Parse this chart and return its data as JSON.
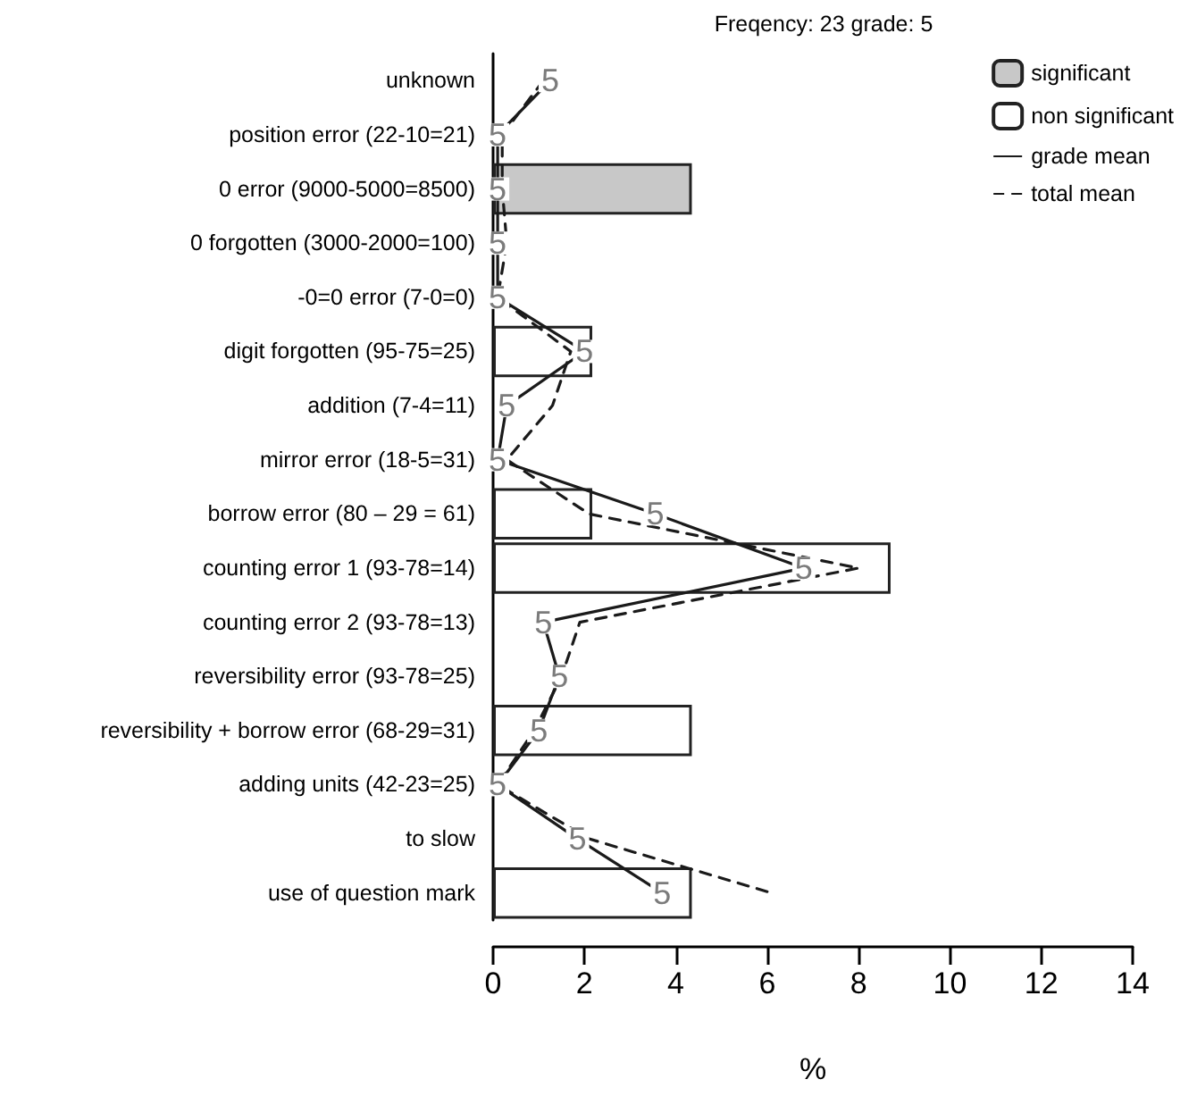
{
  "chart_data": {
    "type": "bar",
    "orientation": "horizontal",
    "title": "Freqency: 23 grade: 5",
    "xlabel": "%",
    "categories": [
      "unknown",
      "position error (22-10=21)",
      "0 error (9000-5000=8500)",
      "0 forgotten (3000-2000=100)",
      "-0=0 error (7-0=0)",
      "digit forgotten (95-75=25)",
      "addition (7-4=11)",
      "mirror error (18-5=31)",
      "borrow error (80 – 29 = 61)",
      "counting error 1 (93-78=14)",
      "counting error 2 (93-78=13)",
      "reversibility error (93-78=25)",
      "reversibility + borrow error (68-29=31)",
      "adding units (42-23=25)",
      "to slow",
      "use of question mark"
    ],
    "series": [
      {
        "name": "significant",
        "color": "#c8c8c8",
        "values": [
          null,
          null,
          4.35,
          null,
          null,
          null,
          null,
          null,
          null,
          null,
          null,
          null,
          null,
          null,
          null,
          null
        ]
      },
      {
        "name": "non significant",
        "color": "#ffffff",
        "values": [
          null,
          null,
          null,
          null,
          null,
          2.17,
          null,
          null,
          2.17,
          8.7,
          null,
          null,
          4.35,
          null,
          null,
          4.35
        ]
      },
      {
        "name": "grade mean",
        "type": "line",
        "color": "#1a1a1a",
        "line_style": "solid",
        "marker": "square",
        "values": [
          1.25,
          0.1,
          0.1,
          0.1,
          0.1,
          2.0,
          0.3,
          0.1,
          3.55,
          6.8,
          1.1,
          1.45,
          1.0,
          0.1,
          1.85,
          3.7
        ]
      },
      {
        "name": "total mean",
        "type": "line",
        "color": "#1a1a1a",
        "line_style": "dashed",
        "values": [
          1.1,
          0.2,
          0.2,
          0.3,
          0.1,
          1.7,
          1.3,
          0.3,
          2.1,
          8.0,
          1.9,
          1.5,
          0.9,
          0.1,
          2.1,
          6.1
        ]
      }
    ],
    "annotations": [
      {
        "text": "5",
        "x": 1.25,
        "y": "unknown"
      },
      {
        "text": "5",
        "x": 0.1,
        "y": "position error (22-10=21)"
      },
      {
        "text": "5",
        "x": 0.1,
        "y": "0 error (9000-5000=8500)"
      },
      {
        "text": "5",
        "x": 0.1,
        "y": "0 forgotten (3000-2000=100)"
      },
      {
        "text": "5",
        "x": 0.1,
        "y": "-0=0 error (7-0=0)"
      },
      {
        "text": "5",
        "x": 2.0,
        "y": "digit forgotten (95-75=25)"
      },
      {
        "text": "5",
        "x": 0.3,
        "y": "addition (7-4=11)"
      },
      {
        "text": "5",
        "x": 0.1,
        "y": "mirror error (18-5=31)"
      },
      {
        "text": "5",
        "x": 3.55,
        "y": "borrow error (80 – 29 = 61)"
      },
      {
        "text": "5",
        "x": 6.8,
        "y": "counting error 1 (93-78=14)"
      },
      {
        "text": "5",
        "x": 1.1,
        "y": "counting error 2 (93-78=13)"
      },
      {
        "text": "5",
        "x": 1.45,
        "y": "reversibility error (93-78=25)"
      },
      {
        "text": "5",
        "x": 1.0,
        "y": "reversibility + borrow error (68-29=31)"
      },
      {
        "text": "5",
        "x": 0.1,
        "y": "adding units (42-23=25)"
      },
      {
        "text": "5",
        "x": 1.85,
        "y": "to slow"
      },
      {
        "text": "5",
        "x": 3.7,
        "y": "use of question mark"
      }
    ],
    "xlim": [
      0,
      14
    ],
    "xticks": [
      0,
      2,
      4,
      6,
      8,
      10,
      12,
      14
    ],
    "grid": false,
    "legend": "top right"
  }
}
